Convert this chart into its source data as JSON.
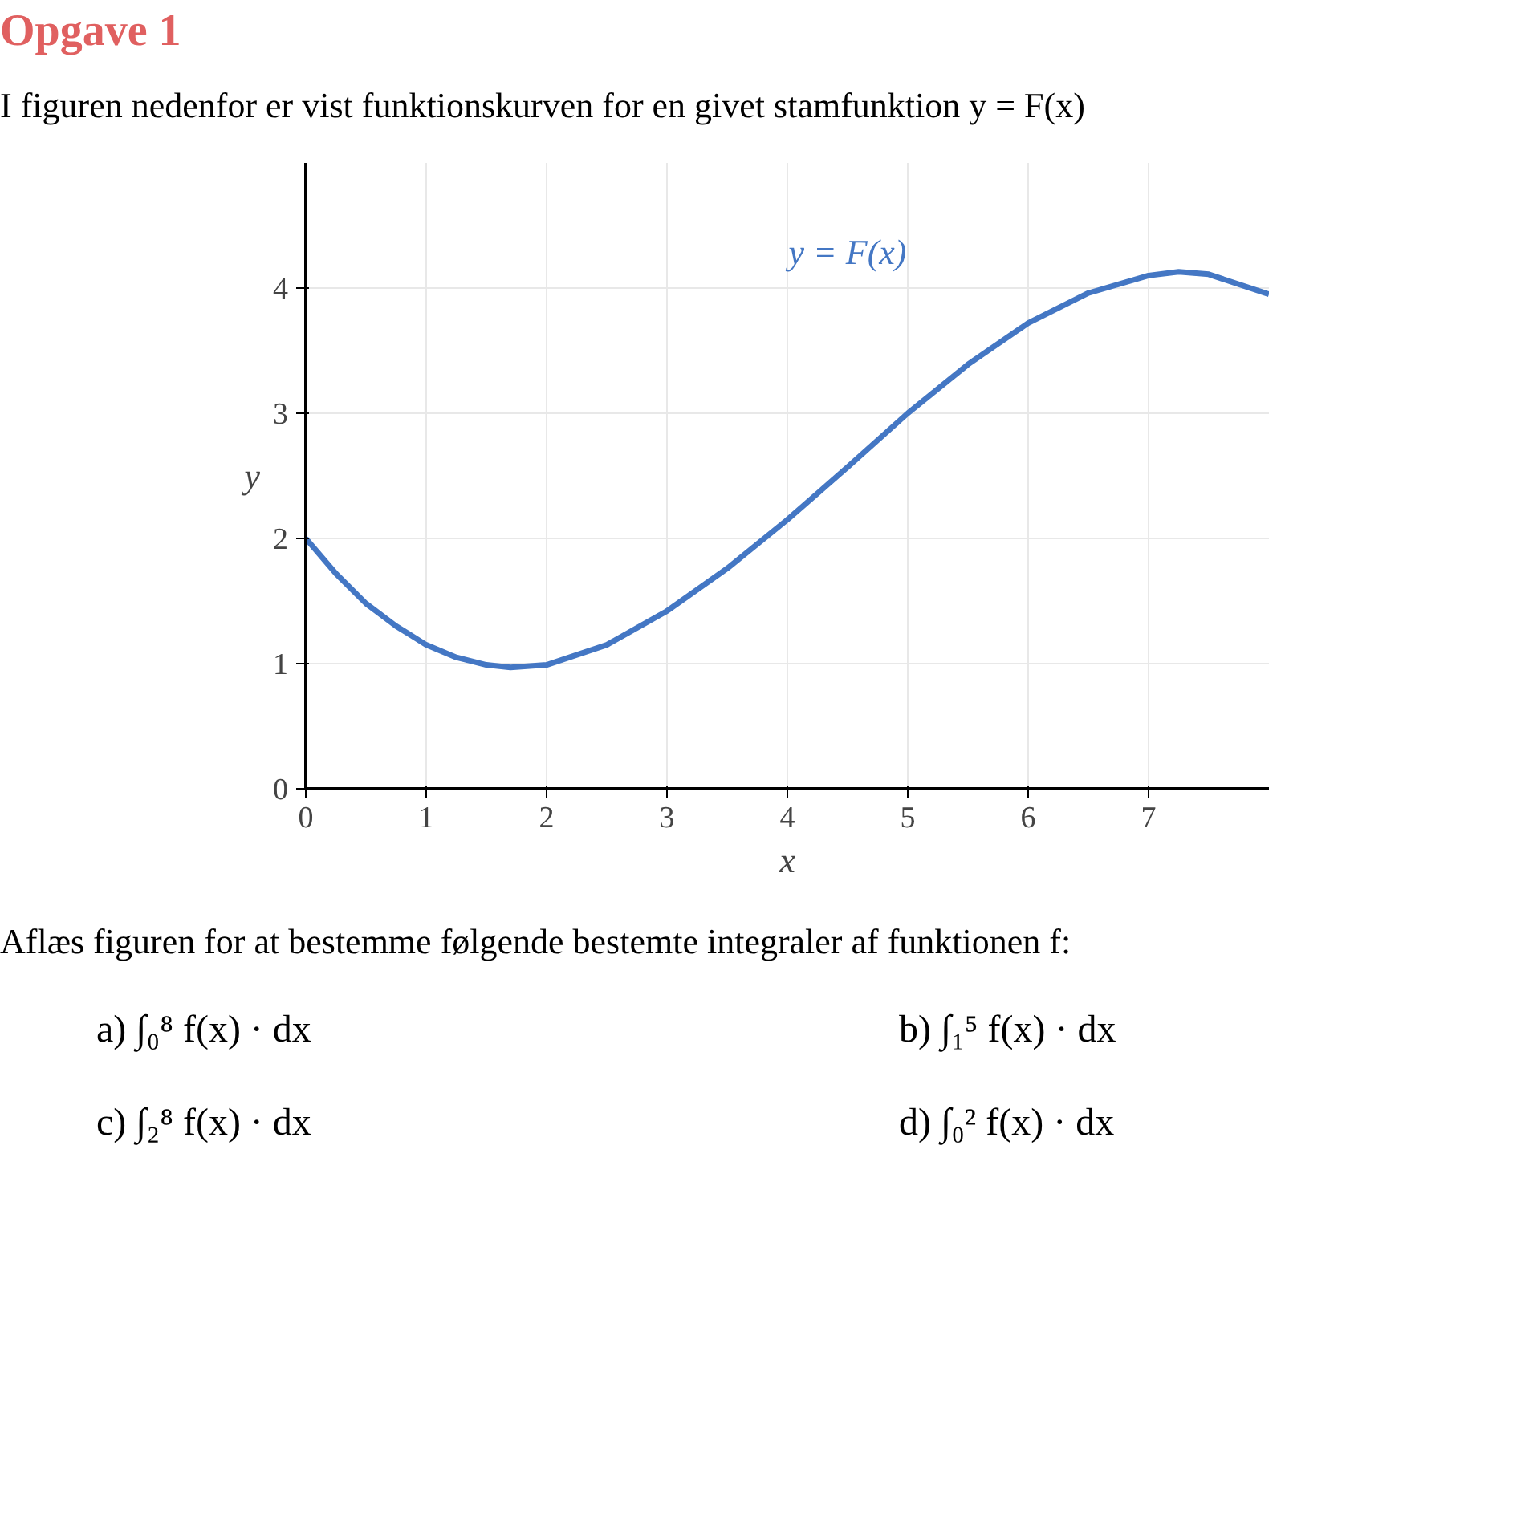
{
  "chart_data": {
    "type": "line",
    "title": "Opgave 1",
    "subtitle": "I figuren nedenfor er vist funktionskurven for en givet stamfunktion y = F(x)",
    "xlabel": "x",
    "ylabel": "y",
    "x": [
      0,
      0.25,
      0.5,
      0.75,
      1,
      1.25,
      1.5,
      1.7,
      2,
      2.5,
      3,
      3.5,
      4,
      4.5,
      5,
      5.5,
      6,
      6.5,
      7,
      7.25,
      7.5,
      8
    ],
    "series": [
      {
        "name": "y = F(x)",
        "color": "#4477c4",
        "values": [
          2.0,
          1.72,
          1.48,
          1.3,
          1.15,
          1.05,
          0.99,
          0.97,
          0.99,
          1.15,
          1.42,
          1.76,
          2.15,
          2.57,
          3.0,
          3.39,
          3.72,
          3.96,
          4.1,
          4.13,
          4.11,
          3.95
        ]
      }
    ],
    "xlim": [
      0,
      8
    ],
    "ylim": [
      0,
      5
    ],
    "xticks": [
      0,
      1,
      2,
      3,
      4,
      5,
      6,
      7
    ],
    "yticks": [
      0,
      1,
      2,
      3,
      4
    ],
    "grid": true,
    "marker": "none",
    "line_style": "solid",
    "annotations": [
      "Aflæs figuren for at bestemme følgende bestemte integraler af funktionen f:",
      "a)  ∫₀⁸ f(x) · dx",
      "b)  ∫₁⁵ f(x) · dx",
      "c)  ∫₂⁸ f(x) · dx",
      "d)  ∫₀² f(x) · dx"
    ]
  }
}
